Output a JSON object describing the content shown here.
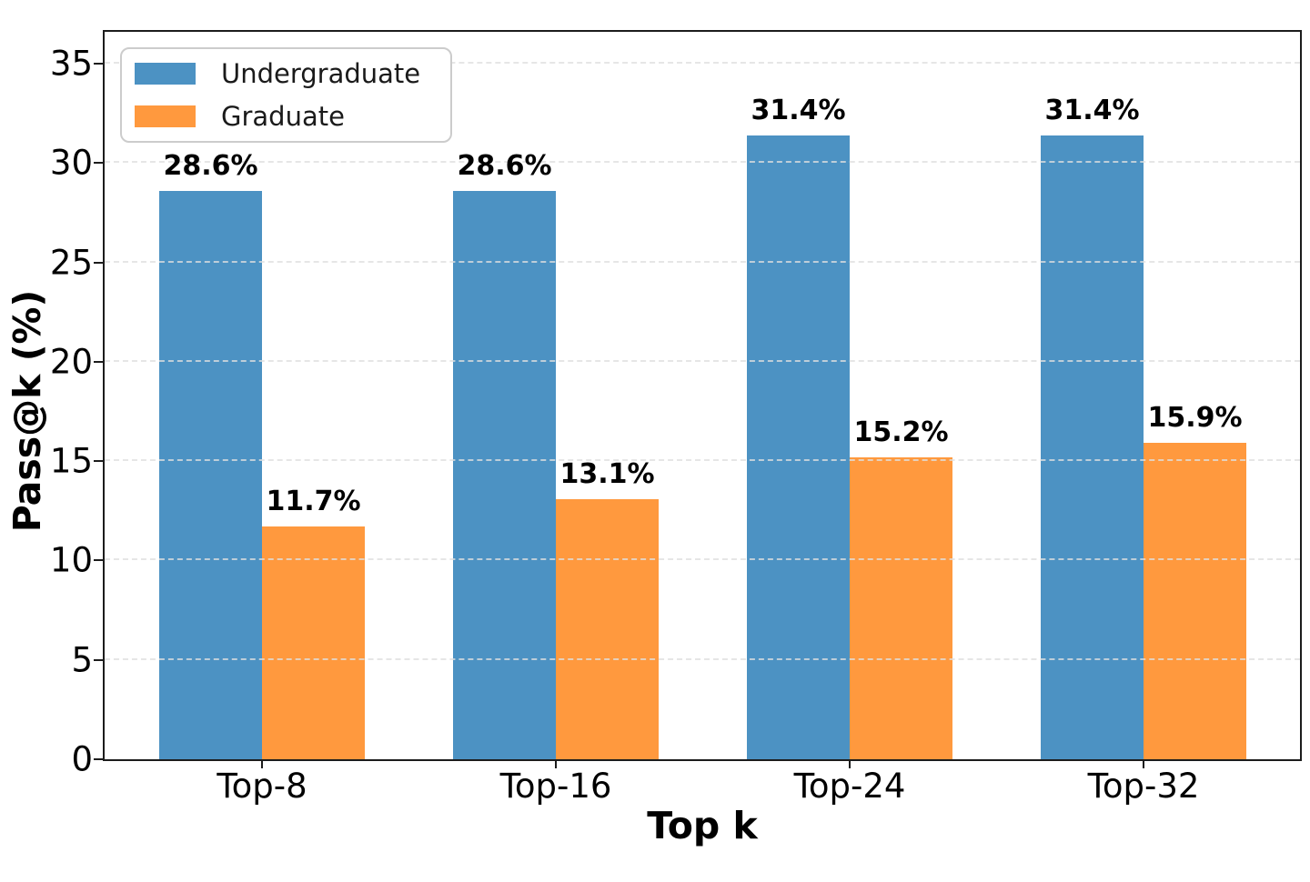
{
  "chart_data": {
    "type": "bar",
    "title": "",
    "xlabel": "Top k",
    "ylabel": "Pass@k (%)",
    "categories": [
      "Top-8",
      "Top-16",
      "Top-24",
      "Top-32"
    ],
    "series": [
      {
        "name": "Undergraduate",
        "color": "#4C92C3",
        "values": [
          28.6,
          28.6,
          31.4,
          31.4
        ],
        "labels": [
          "28.6%",
          "28.6%",
          "31.4%",
          "31.4%"
        ]
      },
      {
        "name": "Graduate",
        "color": "#FF993E",
        "values": [
          11.7,
          13.1,
          15.2,
          15.9
        ],
        "labels": [
          "11.7%",
          "13.1%",
          "15.2%",
          "15.9%"
        ]
      }
    ],
    "ylim": [
      0,
      36.6
    ],
    "yticks": [
      0,
      5,
      10,
      15,
      20,
      25,
      30,
      35
    ],
    "grid": "y-dashed",
    "legend_position": "upper-left"
  },
  "colors": {
    "undergraduate": "#4C92C3",
    "graduate": "#FF993E",
    "spine": "#1c1c1c",
    "gridline": "#dfdfdf"
  }
}
